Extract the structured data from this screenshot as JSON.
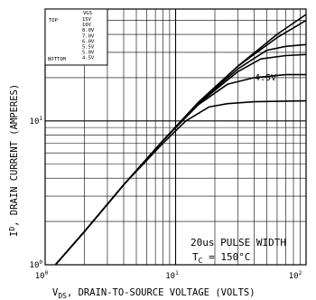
{
  "chart_data": {
    "type": "line",
    "xscale": "log",
    "yscale": "log",
    "xlim": [
      1,
      100
    ],
    "ylim": [
      1,
      60
    ],
    "grid": true,
    "xlabel_main": "V",
    "xlabel_sub": "DS",
    "xlabel_rest": ", DRAIN-TO-SOURCE VOLTAGE (VOLTS)",
    "ylabel_main": "I",
    "ylabel_sub": "D",
    "ylabel_rest": ", DRAIN CURRENT (AMPERES)",
    "x_ticks": [
      {
        "label_base": "10",
        "label_exp": "0",
        "value": 1
      },
      {
        "label_base": "10",
        "label_exp": "1",
        "value": 10
      },
      {
        "label_base": "10",
        "label_exp": "2",
        "value": 100
      }
    ],
    "y_ticks": [
      {
        "label_base": "10",
        "label_exp": "0",
        "value": 1
      },
      {
        "label_base": "10",
        "label_exp": "1",
        "value": 10
      }
    ],
    "legend": {
      "header_vgs": "VGS",
      "top_label": "TOP",
      "bottom_label": "BOTTOM",
      "values": [
        "15V",
        "10V",
        "8.0V",
        "7.0V",
        "6.0V",
        "5.5V",
        "5.0V",
        "4.5V"
      ]
    },
    "annotation_curve_label": "4.5V",
    "annotation_line1": "20us PULSE WIDTH",
    "annotation_line2_main": "T",
    "annotation_line2_sub": "C",
    "annotation_line2_rest": " = 150°C",
    "series": [
      {
        "name": "15V",
        "points": [
          [
            1.2,
            1
          ],
          [
            2,
            1.7
          ],
          [
            4,
            3.6
          ],
          [
            8,
            7.3
          ],
          [
            15,
            13.5
          ],
          [
            30,
            24
          ],
          [
            60,
            40
          ],
          [
            100,
            55
          ]
        ]
      },
      {
        "name": "10V",
        "points": [
          [
            1.2,
            1
          ],
          [
            2,
            1.7
          ],
          [
            4,
            3.6
          ],
          [
            8,
            7.3
          ],
          [
            15,
            13.5
          ],
          [
            30,
            24
          ],
          [
            60,
            38
          ],
          [
            100,
            50
          ]
        ]
      },
      {
        "name": "8.0V",
        "points": [
          [
            1.2,
            1
          ],
          [
            2,
            1.7
          ],
          [
            4,
            3.6
          ],
          [
            8,
            7.3
          ],
          [
            15,
            13.3
          ],
          [
            30,
            23
          ],
          [
            50,
            31
          ],
          [
            70,
            33
          ],
          [
            100,
            34
          ]
        ]
      },
      {
        "name": "7.0V",
        "points": [
          [
            1.2,
            1
          ],
          [
            2,
            1.7
          ],
          [
            4,
            3.6
          ],
          [
            8,
            7.3
          ],
          [
            15,
            13.2
          ],
          [
            30,
            22
          ],
          [
            45,
            27
          ],
          [
            70,
            28.5
          ],
          [
            100,
            29
          ]
        ]
      },
      {
        "name": "6.0V",
        "points": [
          [
            1.2,
            1
          ],
          [
            2,
            1.7
          ],
          [
            4,
            3.6
          ],
          [
            8,
            7.3
          ],
          [
            15,
            13
          ],
          [
            25,
            18
          ],
          [
            40,
            20
          ],
          [
            70,
            21
          ],
          [
            100,
            21
          ]
        ]
      },
      {
        "name": "4.5V",
        "points": [
          [
            1.2,
            1
          ],
          [
            2,
            1.7
          ],
          [
            4,
            3.6
          ],
          [
            8,
            7
          ],
          [
            12,
            10
          ],
          [
            18,
            12.5
          ],
          [
            25,
            13.2
          ],
          [
            40,
            13.6
          ],
          [
            100,
            13.8
          ]
        ]
      }
    ]
  }
}
